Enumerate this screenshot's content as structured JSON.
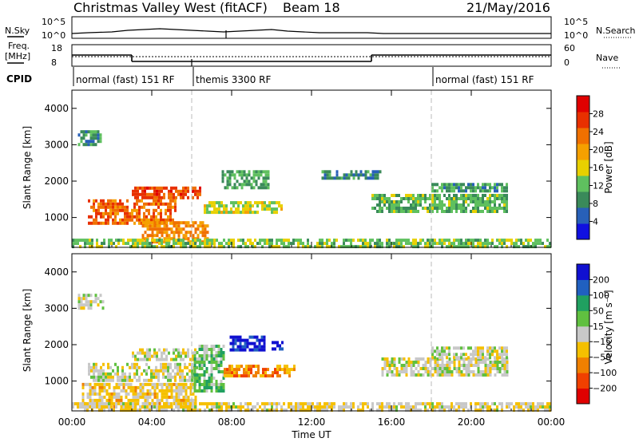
{
  "header": {
    "station": "Christmas Valley West (fitACF)",
    "beam": "Beam 18",
    "date": "21/May/2016"
  },
  "status_panels": {
    "nsky_label": "N.Sky",
    "nsky_ticks": [
      "10^5",
      "10^0"
    ],
    "nsearch_label": "N.Search",
    "nsearch_ticks": [
      "10^5",
      "10^0"
    ],
    "freq_label_line1": "Freq.",
    "freq_label_line2": "[MHz]",
    "freq_ticks": [
      "18",
      "8"
    ],
    "nave_label": "Nave",
    "nave_ticks": [
      "60",
      "0"
    ],
    "cpid_label": "CPID",
    "cpid_segments": [
      {
        "label": "normal (fast) 151 RF",
        "start_hour": 0
      },
      {
        "label": "themis 3300 RF",
        "start_hour": 6
      },
      {
        "label": "normal (fast) 151 RF",
        "start_hour": 18
      }
    ],
    "freq_steps": [
      {
        "start_hour": 0,
        "end_hour": 3,
        "mhz": 14.5
      },
      {
        "start_hour": 3,
        "end_hour": 15,
        "mhz": 10.5
      },
      {
        "start_hour": 15,
        "end_hour": 24,
        "mhz": 14.5
      }
    ]
  },
  "chart_data": [
    {
      "type": "heatmap",
      "parameter": "power",
      "ylabel": "Slant Range [km]",
      "y_ticks": [
        "1000",
        "2000",
        "3000",
        "4000"
      ],
      "ylim": [
        180,
        4500
      ],
      "xlim": [
        0,
        24
      ],
      "colorbar_label": "Power [dB]",
      "colorbar_ticks": [
        "4",
        "8",
        "12",
        "16",
        "20",
        "24",
        "28"
      ],
      "colorbar_range": [
        0,
        30
      ],
      "colors": [
        "#1010e0",
        "#2860b8",
        "#3a8a5a",
        "#5fc05f",
        "#e8d000",
        "#f5a000",
        "#f07000",
        "#e83000",
        "#e00000"
      ],
      "regions": [
        {
          "t0": 0.8,
          "t1": 5.2,
          "r0": 850,
          "r1": 1500,
          "value": 22
        },
        {
          "t0": 3.0,
          "t1": 6.4,
          "r0": 1500,
          "r1": 1850,
          "value": 24
        },
        {
          "t0": 3.5,
          "t1": 6.8,
          "r0": 300,
          "r1": 900,
          "value": 20
        },
        {
          "t0": 6.6,
          "t1": 10.5,
          "r0": 1100,
          "r1": 1450,
          "value": 14
        },
        {
          "t0": 7.5,
          "t1": 9.8,
          "r0": 1850,
          "r1": 2300,
          "value": 10
        },
        {
          "t0": 0.3,
          "t1": 1.5,
          "r0": 3000,
          "r1": 3400,
          "value": 9
        },
        {
          "t0": 12.5,
          "t1": 15.5,
          "r0": 2050,
          "r1": 2300,
          "value": 8
        },
        {
          "t0": 15.0,
          "t1": 21.8,
          "r0": 1200,
          "r1": 1650,
          "value": 11
        },
        {
          "t0": 18.0,
          "t1": 21.8,
          "r0": 1700,
          "r1": 1950,
          "value": 9
        },
        {
          "t0": 0,
          "t1": 24,
          "r0": 180,
          "r1": 420,
          "value": 12
        }
      ]
    },
    {
      "type": "heatmap",
      "parameter": "velocity",
      "xlabel": "Time UT",
      "ylabel": "Slant Range [km]",
      "x_ticks": [
        "00:00",
        "04:00",
        "08:00",
        "12:00",
        "16:00",
        "20:00",
        "00:00"
      ],
      "y_ticks": [
        "1000",
        "2000",
        "3000",
        "4000"
      ],
      "ylim": [
        180,
        4500
      ],
      "xlim": [
        0,
        24
      ],
      "colorbar_label": "Velocity [m s⁻¹]",
      "colorbar_ticks": [
        "200",
        "100",
        "50",
        "15",
        "−15",
        "−50",
        "−100",
        "−200"
      ],
      "colorbar_range": [
        -250,
        250
      ],
      "colors": [
        "#e00000",
        "#f04000",
        "#f08000",
        "#f5c000",
        "#c8c8c8",
        "#60c040",
        "#20a060",
        "#2060c0",
        "#1010d0"
      ],
      "regions": [
        {
          "t0": 0.8,
          "t1": 6.2,
          "r0": 1000,
          "r1": 1500,
          "value": 0
        },
        {
          "t0": 3.0,
          "t1": 6.2,
          "r0": 1550,
          "r1": 1900,
          "value": 0
        },
        {
          "t0": 0.5,
          "t1": 6.2,
          "r0": 300,
          "r1": 950,
          "value": -40
        },
        {
          "t0": 6.1,
          "t1": 7.6,
          "r0": 700,
          "r1": 2000,
          "value": 60
        },
        {
          "t0": 7.6,
          "t1": 11.2,
          "r0": 1150,
          "r1": 1450,
          "value": -110
        },
        {
          "t0": 7.9,
          "t1": 9.6,
          "r0": 1850,
          "r1": 2250,
          "value": 220
        },
        {
          "t0": 10.0,
          "t1": 10.6,
          "r0": 1850,
          "r1": 2100,
          "value": 220
        },
        {
          "t0": 0.3,
          "t1": 1.6,
          "r0": 3000,
          "r1": 3400,
          "value": 0
        },
        {
          "t0": 15.5,
          "t1": 21.8,
          "r0": 1200,
          "r1": 1650,
          "value": 0
        },
        {
          "t0": 18.0,
          "t1": 21.8,
          "r0": 1650,
          "r1": 1950,
          "value": 0
        },
        {
          "t0": 0,
          "t1": 24,
          "r0": 180,
          "r1": 420,
          "value": -20
        }
      ]
    }
  ]
}
